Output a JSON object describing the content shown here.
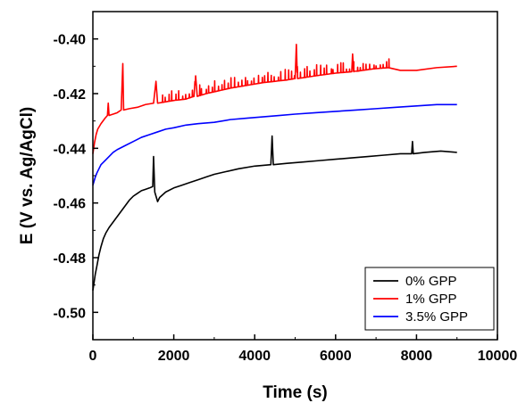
{
  "chart_data": {
    "type": "line",
    "title": "",
    "xlabel": "Time (s)",
    "ylabel": "E (V vs. Ag/AgCl)",
    "xlim": [
      0,
      10000
    ],
    "ylim": [
      -0.51,
      -0.39
    ],
    "x_ticks": [
      0,
      2000,
      4000,
      6000,
      8000,
      10000
    ],
    "x_tick_labels": [
      "0",
      "2000",
      "4000",
      "6000",
      "8000",
      "10000"
    ],
    "y_ticks": [
      -0.5,
      -0.48,
      -0.46,
      -0.44,
      -0.42,
      -0.4
    ],
    "y_tick_labels": [
      "-0.50",
      "-0.48",
      "-0.46",
      "-0.44",
      "-0.42",
      "-0.40"
    ],
    "grid": false,
    "legend_position": "bottom-right",
    "series": [
      {
        "name": "0% GPP",
        "color": "#000000",
        "points": [
          [
            0,
            -0.492
          ],
          [
            30,
            -0.489
          ],
          [
            60,
            -0.486
          ],
          [
            100,
            -0.483
          ],
          [
            150,
            -0.479
          ],
          [
            200,
            -0.476
          ],
          [
            260,
            -0.473
          ],
          [
            320,
            -0.471
          ],
          [
            400,
            -0.469
          ],
          [
            500,
            -0.467
          ],
          [
            600,
            -0.465
          ],
          [
            700,
            -0.463
          ],
          [
            800,
            -0.461
          ],
          [
            900,
            -0.459
          ],
          [
            1000,
            -0.4575
          ],
          [
            1100,
            -0.4565
          ],
          [
            1200,
            -0.4555
          ],
          [
            1300,
            -0.455
          ],
          [
            1400,
            -0.4545
          ],
          [
            1480,
            -0.454
          ],
          [
            1500,
            -0.443
          ],
          [
            1530,
            -0.456
          ],
          [
            1600,
            -0.4595
          ],
          [
            1650,
            -0.458
          ],
          [
            1800,
            -0.456
          ],
          [
            2000,
            -0.4545
          ],
          [
            2200,
            -0.4535
          ],
          [
            2400,
            -0.4525
          ],
          [
            2600,
            -0.4515
          ],
          [
            2800,
            -0.4505
          ],
          [
            3000,
            -0.4495
          ],
          [
            3300,
            -0.4485
          ],
          [
            3600,
            -0.4475
          ],
          [
            4000,
            -0.4465
          ],
          [
            4400,
            -0.446
          ],
          [
            4430,
            -0.4355
          ],
          [
            4460,
            -0.446
          ],
          [
            4800,
            -0.4455
          ],
          [
            5200,
            -0.445
          ],
          [
            5600,
            -0.4445
          ],
          [
            6000,
            -0.444
          ],
          [
            6400,
            -0.4435
          ],
          [
            6800,
            -0.443
          ],
          [
            7200,
            -0.4425
          ],
          [
            7600,
            -0.442
          ],
          [
            7880,
            -0.442
          ],
          [
            7900,
            -0.4375
          ],
          [
            7920,
            -0.442
          ],
          [
            8200,
            -0.4415
          ],
          [
            8600,
            -0.441
          ],
          [
            9000,
            -0.4415
          ]
        ]
      },
      {
        "name": "1% GPP",
        "color": "#ff0000",
        "points": [
          [
            0,
            -0.442
          ],
          [
            40,
            -0.438
          ],
          [
            80,
            -0.435
          ],
          [
            120,
            -0.433
          ],
          [
            200,
            -0.431
          ],
          [
            300,
            -0.429
          ],
          [
            360,
            -0.428
          ],
          [
            380,
            -0.4235
          ],
          [
            400,
            -0.428
          ],
          [
            500,
            -0.4275
          ],
          [
            600,
            -0.427
          ],
          [
            700,
            -0.426
          ],
          [
            740,
            -0.409
          ],
          [
            760,
            -0.426
          ],
          [
            900,
            -0.4255
          ],
          [
            1100,
            -0.425
          ],
          [
            1300,
            -0.424
          ],
          [
            1500,
            -0.4235
          ],
          [
            1560,
            -0.4155
          ],
          [
            1600,
            -0.4235
          ],
          [
            1800,
            -0.423
          ],
          [
            2000,
            -0.4225
          ],
          [
            2300,
            -0.422
          ],
          [
            2500,
            -0.421
          ],
          [
            2540,
            -0.4135
          ],
          [
            2580,
            -0.421
          ],
          [
            2800,
            -0.42
          ],
          [
            3100,
            -0.419
          ],
          [
            3400,
            -0.418
          ],
          [
            3800,
            -0.417
          ],
          [
            4200,
            -0.416
          ],
          [
            4800,
            -0.415
          ],
          [
            5000,
            -0.4145
          ],
          [
            5030,
            -0.402
          ],
          [
            5060,
            -0.4145
          ],
          [
            5500,
            -0.4135
          ],
          [
            6000,
            -0.4125
          ],
          [
            6400,
            -0.412
          ],
          [
            6420,
            -0.4055
          ],
          [
            6450,
            -0.412
          ],
          [
            6900,
            -0.411
          ],
          [
            7300,
            -0.4105
          ],
          [
            7600,
            -0.4115
          ],
          [
            8000,
            -0.4115
          ],
          [
            8500,
            -0.4105
          ],
          [
            9000,
            -0.41
          ]
        ]
      },
      {
        "name": "3.5% GPP",
        "color": "#0000ff",
        "points": [
          [
            0,
            -0.4535
          ],
          [
            30,
            -0.452
          ],
          [
            60,
            -0.4505
          ],
          [
            100,
            -0.449
          ],
          [
            150,
            -0.4475
          ],
          [
            200,
            -0.446
          ],
          [
            300,
            -0.4445
          ],
          [
            400,
            -0.443
          ],
          [
            500,
            -0.4415
          ],
          [
            600,
            -0.4405
          ],
          [
            800,
            -0.439
          ],
          [
            1000,
            -0.4375
          ],
          [
            1200,
            -0.436
          ],
          [
            1400,
            -0.435
          ],
          [
            1600,
            -0.434
          ],
          [
            1800,
            -0.433
          ],
          [
            2000,
            -0.4325
          ],
          [
            2300,
            -0.4315
          ],
          [
            2600,
            -0.431
          ],
          [
            3000,
            -0.4305
          ],
          [
            3400,
            -0.4295
          ],
          [
            3800,
            -0.429
          ],
          [
            4200,
            -0.4285
          ],
          [
            4600,
            -0.428
          ],
          [
            5000,
            -0.4275
          ],
          [
            5500,
            -0.427
          ],
          [
            6000,
            -0.4265
          ],
          [
            6500,
            -0.426
          ],
          [
            7000,
            -0.4255
          ],
          [
            7500,
            -0.425
          ],
          [
            8000,
            -0.4245
          ],
          [
            8500,
            -0.424
          ],
          [
            9000,
            -0.424
          ]
        ]
      }
    ],
    "noise_spikes_1pct_gpp": {
      "x_from": 1700,
      "x_to": 7400,
      "count": 70,
      "max_height": 0.004
    }
  }
}
